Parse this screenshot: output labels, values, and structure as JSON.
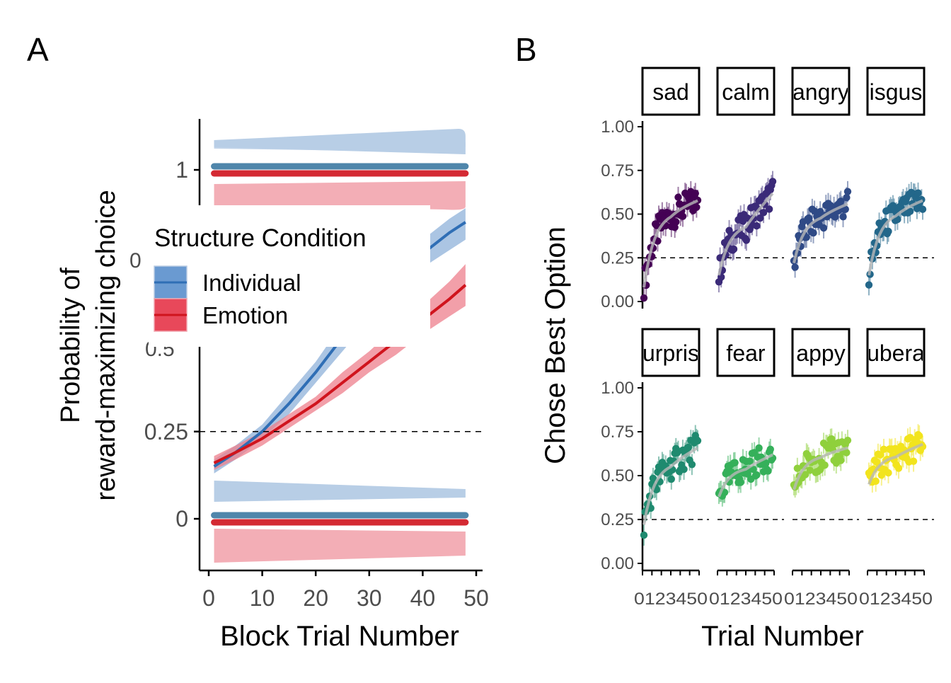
{
  "panel_a": {
    "tag": "A",
    "legend": {
      "title": "Structure Condition",
      "items": [
        {
          "label": "Individual",
          "color": "#2f6eb5",
          "fill": "#6a9ad1"
        },
        {
          "label": "Emotion",
          "color": "#d0141d",
          "fill": "#e8485a"
        }
      ]
    },
    "hidden_tick_fragments": [
      "0",
      "0.5"
    ]
  },
  "panel_b": {
    "tag": "B"
  },
  "chart_data": [
    {
      "type": "line",
      "xlabel": "Block Trial Number",
      "ylabel_lines": [
        "Probability of",
        "reward-maximizing choice"
      ],
      "xlim": [
        0,
        50
      ],
      "xticks": [
        "0",
        "10",
        "20",
        "30",
        "40",
        "50"
      ],
      "ylim": [
        0,
        1
      ],
      "yticks": [
        "0",
        "0.25",
        "1"
      ],
      "reference_line": {
        "y": 0.25,
        "style": "dashed"
      },
      "grid": false,
      "legend_position": "inside-top-left",
      "x": [
        1,
        5,
        10,
        15,
        20,
        25,
        30,
        35,
        40,
        45,
        48
      ],
      "series": [
        {
          "name": "Individual",
          "color": "#2f6eb5",
          "values": [
            0.15,
            0.19,
            0.25,
            0.33,
            0.42,
            0.52,
            0.61,
            0.69,
            0.76,
            0.82,
            0.85
          ],
          "lower": [
            0.13,
            0.17,
            0.23,
            0.3,
            0.39,
            0.48,
            0.57,
            0.65,
            0.72,
            0.77,
            0.8
          ],
          "upper": [
            0.17,
            0.21,
            0.27,
            0.36,
            0.45,
            0.56,
            0.65,
            0.73,
            0.8,
            0.86,
            0.89
          ]
        },
        {
          "name": "Emotion",
          "color": "#d0141d",
          "values": [
            0.16,
            0.19,
            0.23,
            0.28,
            0.33,
            0.39,
            0.45,
            0.51,
            0.57,
            0.63,
            0.67
          ],
          "lower": [
            0.14,
            0.17,
            0.21,
            0.26,
            0.31,
            0.36,
            0.42,
            0.47,
            0.53,
            0.58,
            0.61
          ],
          "upper": [
            0.18,
            0.21,
            0.25,
            0.3,
            0.35,
            0.42,
            0.48,
            0.55,
            0.61,
            0.68,
            0.73
          ]
        }
      ],
      "marginal_rugs": [
        {
          "y": 1,
          "series": "Individual",
          "color": "#3d7aa3"
        },
        {
          "y": 1,
          "series": "Emotion",
          "color": "#d0141d"
        },
        {
          "y": 0,
          "series": "Individual",
          "color": "#3d7aa3"
        },
        {
          "y": 0,
          "series": "Emotion",
          "color": "#d0141d"
        }
      ]
    },
    {
      "type": "scatter",
      "xlabel": "Trial Number",
      "ylabel": "Chose Best Option",
      "ylim": [
        0,
        1
      ],
      "yticks": [
        "0.00",
        "0.25",
        "0.50",
        "0.75",
        "1.00"
      ],
      "xticks_label": "0123456789101112131415161718192021222324252627282930313233343536373839404142434445464748",
      "xtick_display": "0123450",
      "reference_line": {
        "y": 0.25,
        "style": "dashed"
      },
      "facets": [
        {
          "label": "sad",
          "color": "#440154",
          "start": 0.08,
          "plateau": 0.52,
          "end": 0.58
        },
        {
          "label": "calm",
          "color": "#3b2a78",
          "start": 0.15,
          "plateau": 0.45,
          "end": 0.62
        },
        {
          "label": "angry",
          "color": "#2f4a86",
          "start": 0.22,
          "plateau": 0.5,
          "end": 0.56
        },
        {
          "label": "isgus",
          "color": "#23678a",
          "start": 0.15,
          "plateau": 0.52,
          "end": 0.58
        },
        {
          "label": "urpris",
          "color": "#1f8a6f",
          "start": 0.22,
          "plateau": 0.58,
          "end": 0.66
        },
        {
          "label": "fear",
          "color": "#35b05a",
          "start": 0.38,
          "plateau": 0.55,
          "end": 0.62
        },
        {
          "label": "appy",
          "color": "#8fd03c",
          "start": 0.42,
          "plateau": 0.62,
          "end": 0.66
        },
        {
          "label": "ubera",
          "color": "#f2e41d",
          "start": 0.45,
          "plateau": 0.62,
          "end": 0.68
        }
      ]
    }
  ]
}
